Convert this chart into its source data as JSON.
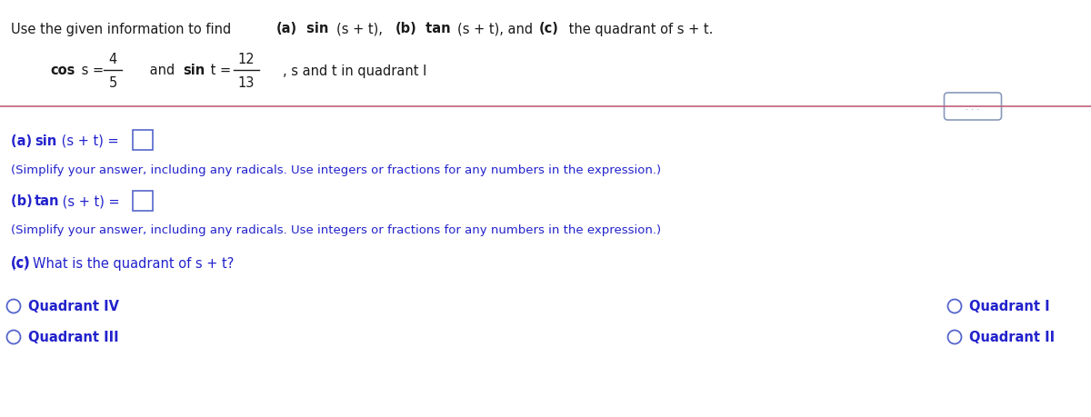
{
  "title_line": "Use the given information to find (a) sin (s + t), (b) tan (s + t), and (c) the quadrant of s + t.",
  "title_bold_parts": [
    "(a)",
    "sin",
    "(b)",
    "tan",
    "(c)"
  ],
  "given_cos_bold": "cos s = ",
  "given_cos_num": "4",
  "given_cos_den": "5",
  "given_sin_bold": " and sin t = ",
  "given_sin_num": "12",
  "given_sin_den": "13",
  "given_extra": ", s and t in quadrant I",
  "part_a_label": "(a) sin (s + t) = ",
  "part_b_label": "(b) tan (s + t) = ",
  "part_c_label": "(c) What is the quadrant of s + t?",
  "simplify_note": "(Simplify your answer, including any radicals. Use integers or fractions for any numbers in the expression.)",
  "choices_left": [
    "Quadrant IV",
    "Quadrant III"
  ],
  "choices_right": [
    "Quadrant I",
    "Quadrant II"
  ],
  "separator_color": "#c0607a",
  "text_color_black": "#1a1a1a",
  "text_color_blue": "#2222cc",
  "text_color_dark": "#111111",
  "bg_color": "#ffffff",
  "box_color": "#5566cc",
  "circle_color": "#5566cc",
  "dots_box_color": "#8899bb"
}
